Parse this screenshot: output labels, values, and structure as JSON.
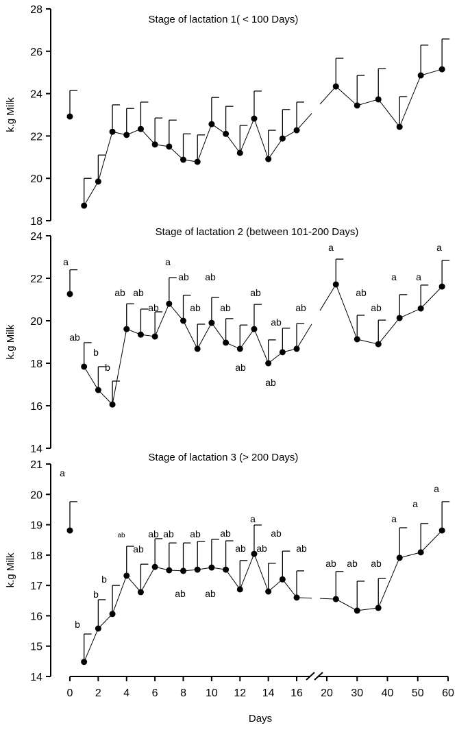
{
  "chart_data": [
    {
      "type": "line",
      "title": "Stage of lactation 1( < 100 Days)",
      "ylabel": "k.g Milk",
      "xlabel": "",
      "ylim": [
        18,
        28
      ],
      "yticks": [
        18,
        20,
        22,
        24,
        26,
        28
      ],
      "x": [
        0,
        1,
        2,
        3,
        4,
        5,
        6,
        7,
        8,
        9,
        10,
        11,
        12,
        13,
        14,
        15,
        16,
        23,
        30,
        37,
        44,
        51,
        58
      ],
      "values": [
        22.92,
        18.71,
        19.85,
        22.2,
        22.05,
        22.33,
        21.6,
        21.5,
        20.88,
        20.78,
        22.56,
        22.1,
        21.2,
        22.82,
        20.91,
        21.88,
        22.27,
        24.34,
        23.44,
        23.73,
        22.43,
        24.86,
        25.15
      ],
      "error_upper": [
        24.15,
        20.0,
        21.1,
        23.47,
        23.3,
        23.6,
        22.85,
        22.75,
        22.1,
        22.05,
        23.82,
        23.4,
        22.5,
        24.12,
        22.27,
        23.25,
        23.6,
        25.67,
        24.86,
        25.18,
        23.86,
        26.29,
        26.58
      ],
      "labels": [],
      "connected_from_index": 1,
      "grid": false
    },
    {
      "type": "line",
      "title": "Stage of lactation 2 (between 101-200 Days)",
      "ylabel": "k.g Milk",
      "xlabel": "",
      "ylim": [
        14,
        24
      ],
      "yticks": [
        14,
        16,
        18,
        20,
        22,
        24
      ],
      "x": [
        0,
        1,
        2,
        3,
        4,
        5,
        6,
        7,
        8,
        9,
        10,
        11,
        12,
        13,
        14,
        15,
        16,
        23,
        30,
        37,
        44,
        51,
        58
      ],
      "values": [
        21.26,
        17.84,
        16.74,
        16.06,
        19.61,
        19.35,
        19.26,
        20.8,
        20.0,
        18.68,
        19.9,
        18.97,
        18.68,
        19.61,
        18.0,
        18.52,
        18.68,
        21.71,
        19.13,
        18.9,
        20.13,
        20.58,
        21.61
      ],
      "error_upper": [
        22.4,
        18.97,
        17.84,
        17.16,
        20.8,
        20.55,
        20.42,
        22.03,
        21.2,
        19.84,
        21.1,
        20.1,
        19.8,
        20.77,
        19.1,
        19.65,
        19.87,
        22.9,
        20.26,
        20.03,
        21.23,
        21.68,
        22.84
      ],
      "labels": [
        "a",
        "ab",
        "b",
        "b",
        "ab",
        "ab",
        "ab",
        "a",
        "ab",
        "ab",
        "ab",
        "ab",
        "ab",
        "ab",
        "ab",
        "ab",
        "ab",
        "a",
        "ab",
        "ab",
        "a",
        "a",
        "a"
      ],
      "connected_from_index": 1,
      "grid": false
    },
    {
      "type": "line",
      "title": "Stage of lactation 3 (> 200 Days)",
      "ylabel": "k.g Milk",
      "xlabel": "Days",
      "ylim": [
        14,
        21
      ],
      "yticks": [
        14,
        15,
        16,
        17,
        18,
        19,
        20,
        21
      ],
      "x": [
        0,
        1,
        2,
        3,
        4,
        5,
        6,
        7,
        8,
        9,
        10,
        11,
        12,
        13,
        14,
        15,
        16,
        23,
        30,
        37,
        44,
        51,
        58
      ],
      "values": [
        18.81,
        14.48,
        15.58,
        16.06,
        17.32,
        16.78,
        17.61,
        17.5,
        17.48,
        17.52,
        17.59,
        17.52,
        16.87,
        18.04,
        16.8,
        17.2,
        16.6,
        16.55,
        16.17,
        16.26,
        17.91,
        18.09,
        18.81
      ],
      "error_upper": [
        19.76,
        15.4,
        16.53,
        17.0,
        18.29,
        17.7,
        18.54,
        18.4,
        18.4,
        18.45,
        18.52,
        18.47,
        17.82,
        18.99,
        17.73,
        18.13,
        17.48,
        17.46,
        17.14,
        17.23,
        18.9,
        19.04,
        19.76
      ],
      "labels": [
        "a",
        "b",
        "b",
        "b",
        "ab",
        "ab",
        "ab",
        "ab",
        "ab",
        "ab",
        "ab",
        "ab",
        "ab",
        "a",
        "ab",
        "ab",
        "ab",
        "ab",
        "ab",
        "ab",
        "a",
        "a",
        "a"
      ],
      "connected_from_index": 1,
      "grid": false
    }
  ],
  "x_axis": {
    "label": "Days",
    "ticks_left": [
      0,
      2,
      4,
      6,
      8,
      10,
      12,
      14,
      16
    ],
    "ticks_right": [
      20,
      30,
      40,
      50,
      60
    ],
    "break_between": [
      16,
      20
    ]
  }
}
